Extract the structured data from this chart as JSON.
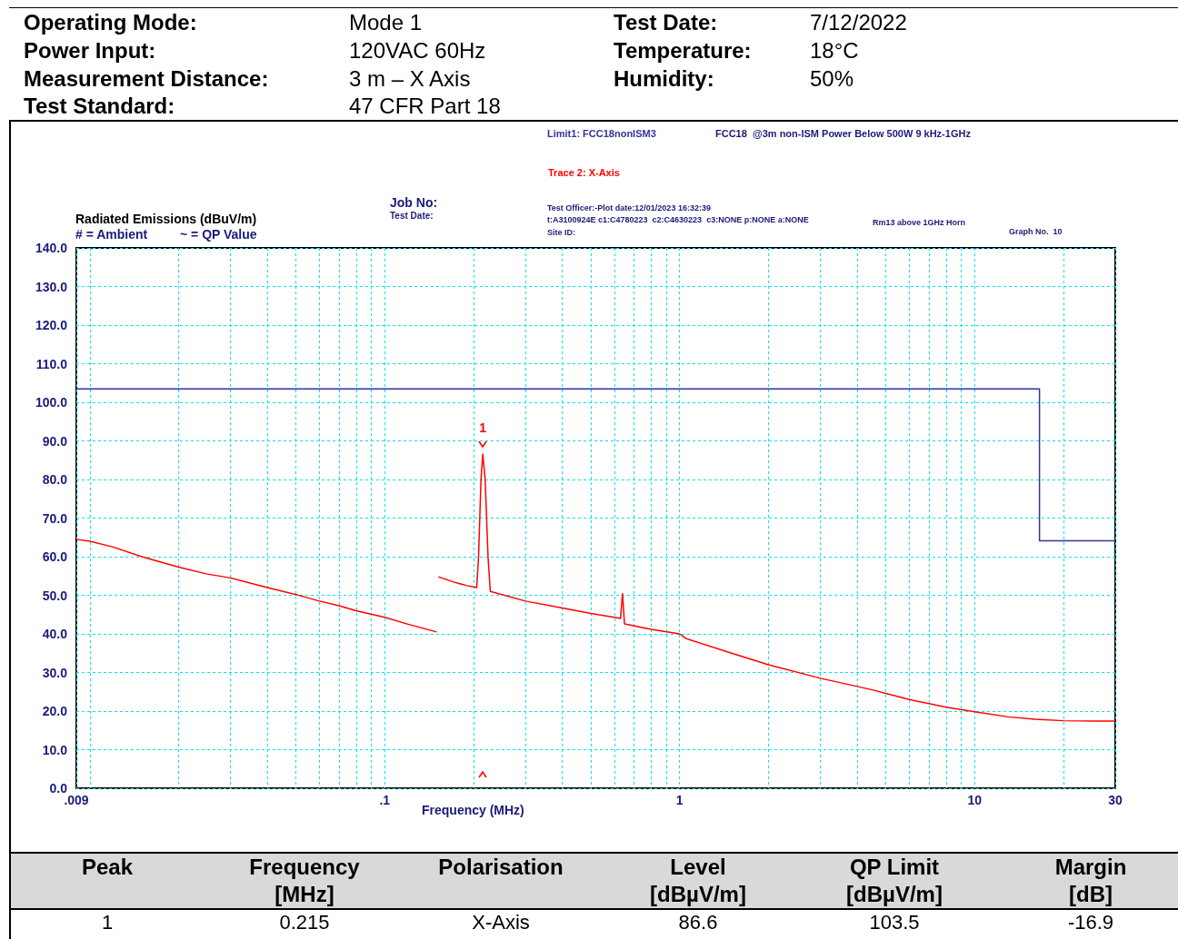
{
  "chart_data": {
    "type": "line",
    "xlabel": "Frequency (MHz)",
    "ylabel": "Radiated Emissions (dBuV/m)",
    "log": "x",
    "grid": true,
    "marker": "none",
    "legend": false,
    "xlim": [
      0.009,
      30
    ],
    "xticks": [
      {
        "value": 0.009,
        "label": ".009"
      },
      {
        "value": 0.01,
        "label": null
      },
      {
        "value": 0.02,
        "label": null
      },
      {
        "value": 0.03,
        "label": null
      },
      {
        "value": 0.04,
        "label": null
      },
      {
        "value": 0.05,
        "label": null
      },
      {
        "value": 0.06,
        "label": null
      },
      {
        "value": 0.07,
        "label": null
      },
      {
        "value": 0.08,
        "label": null
      },
      {
        "value": 0.09,
        "label": null
      },
      {
        "value": 0.1,
        "label": ".1"
      },
      {
        "value": 0.2,
        "label": null
      },
      {
        "value": 0.3,
        "label": null
      },
      {
        "value": 0.4,
        "label": null
      },
      {
        "value": 0.5,
        "label": null
      },
      {
        "value": 0.6,
        "label": null
      },
      {
        "value": 0.7,
        "label": null
      },
      {
        "value": 0.8,
        "label": null
      },
      {
        "value": 0.9,
        "label": null
      },
      {
        "value": 1,
        "label": "1"
      },
      {
        "value": 2,
        "label": null
      },
      {
        "value": 3,
        "label": null
      },
      {
        "value": 4,
        "label": null
      },
      {
        "value": 5,
        "label": null
      },
      {
        "value": 6,
        "label": null
      },
      {
        "value": 7,
        "label": null
      },
      {
        "value": 8,
        "label": null
      },
      {
        "value": 9,
        "label": null
      },
      10,
      {
        "value": 20,
        "label": null
      },
      30
    ],
    "ylim": [
      0,
      140
    ],
    "yticks": [
      {
        "value": 0,
        "label": "0.0"
      },
      {
        "value": 10,
        "label": "10.0"
      },
      {
        "value": 20,
        "label": "20.0"
      },
      {
        "value": 30,
        "label": "30.0"
      },
      {
        "value": 40,
        "label": "40.0"
      },
      {
        "value": 50,
        "label": "50.0"
      },
      {
        "value": 60,
        "label": "60.0"
      },
      {
        "value": 70,
        "label": "70.0"
      },
      {
        "value": 80,
        "label": "80.0"
      },
      {
        "value": 90,
        "label": "90.0"
      },
      {
        "value": 100,
        "label": "100.0"
      },
      {
        "value": 110,
        "label": "110.0"
      },
      {
        "value": 120,
        "label": "120.0"
      },
      {
        "value": 130,
        "label": "130.0"
      },
      {
        "value": 140,
        "label": "140.0"
      }
    ],
    "series": [
      {
        "name": "Trace 2: X-Axis",
        "color": "#ff0000",
        "x": [
          0.009,
          0.01,
          0.012,
          0.015,
          0.02,
          0.025,
          0.03,
          0.04,
          0.05,
          0.06,
          0.07,
          0.08,
          0.1,
          0.12,
          0.15,
          0.151,
          0.152,
          0.17,
          0.19,
          0.205,
          0.208,
          0.212,
          0.215,
          0.219,
          0.224,
          0.228,
          0.3,
          0.4,
          0.5,
          0.6,
          0.63,
          0.64,
          0.65,
          0.8,
          1,
          1.05,
          1.5,
          2,
          3,
          4.5,
          6,
          8,
          10,
          13,
          16,
          20,
          25,
          30
        ],
        "values": [
          64.5,
          64,
          62.5,
          60,
          57.3,
          55.5,
          54.5,
          52,
          50.2,
          48.5,
          47.3,
          46,
          44.3,
          42.5,
          40.5,
          null,
          54.8,
          53.5,
          52.5,
          52,
          60,
          80,
          86.6,
          80,
          60,
          51,
          48.5,
          46.7,
          45.3,
          44.3,
          44,
          50.4,
          42.6,
          41.2,
          40,
          38.8,
          35,
          32,
          28.5,
          25.5,
          23,
          21,
          19.8,
          18.5,
          17.9,
          17.5,
          17.4,
          17.4
        ]
      },
      {
        "name": "Limit1: FCC18nonISM3",
        "type": "step",
        "color": "#333399",
        "x": [
          0.009,
          16.6,
          30
        ],
        "values": [
          103.5,
          64.1,
          64.1
        ]
      }
    ],
    "annotations": [
      "Operating Mode:",
      "Mode 1",
      "Test Date:",
      "7/12/2022",
      "Power Input:",
      "120VAC 60Hz",
      "Temperature:",
      "18°C",
      "Measurement Distance:",
      "3 m – X Axis",
      "Humidity:",
      "50%",
      "Test Standard:",
      "47 CFR Part 18",
      "FCC18  @3m non-ISM Power Below 500W 9 kHz-1GHz",
      "Job No:",
      "Test Date:",
      "Test Officer:-Plot date:12/01/2023 16:32:39",
      "t:A3100924E c1:C4780223  c2:C4630223  c3:NONE p:NONE a:NONE",
      "Site ID:",
      "Rm13 above 1GHz Horn",
      "Graph No.  10",
      "# = Ambient",
      "~ = QP Value",
      "Peak",
      "Frequency\n[MHz]",
      "Polarisation",
      "Level\n[dBµV/m]",
      "QP Limit\n[dBµV/m]",
      "Margin\n[dB]",
      "1",
      "0.215",
      "X-Axis",
      "86.6",
      "103.5",
      "-16.9",
      {
        "text": "1",
        "x": 0.215,
        "y": 86.6
      }
    ]
  }
}
